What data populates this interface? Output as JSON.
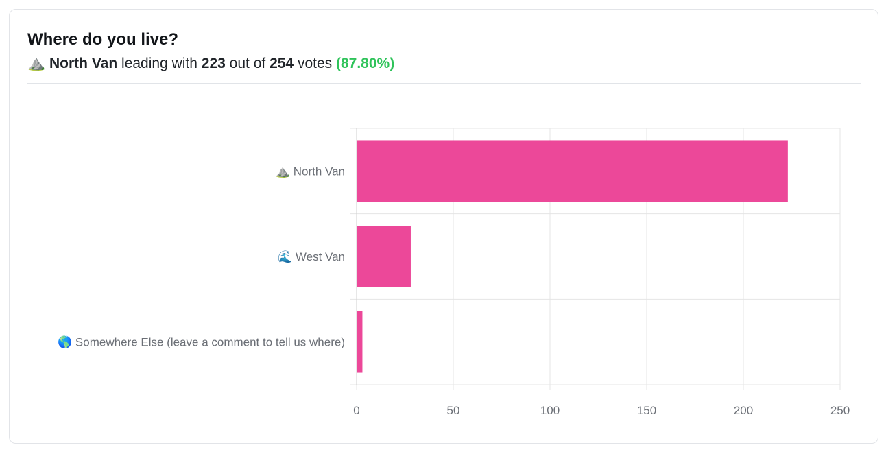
{
  "poll": {
    "title": "Where do you live?",
    "summary": {
      "icon": "⛰️",
      "leader": "North Van",
      "text_leading": "leading with",
      "votes": "223",
      "text_out_of": "out of",
      "total": "254",
      "text_votes": "votes",
      "percent": "(87.80%)"
    }
  },
  "chart_data": {
    "type": "bar",
    "orientation": "horizontal",
    "categories": [
      "⛰️ North Van",
      "🌊 West Van",
      "🌎 Somewhere Else (leave a comment to tell us where)"
    ],
    "values": [
      223,
      28,
      3
    ],
    "xlim": [
      0,
      250
    ],
    "xticks": [
      0,
      50,
      100,
      150,
      200,
      250
    ],
    "grid": true,
    "bar_color": "#ec4899",
    "grid_color": "#e5e5e5"
  }
}
